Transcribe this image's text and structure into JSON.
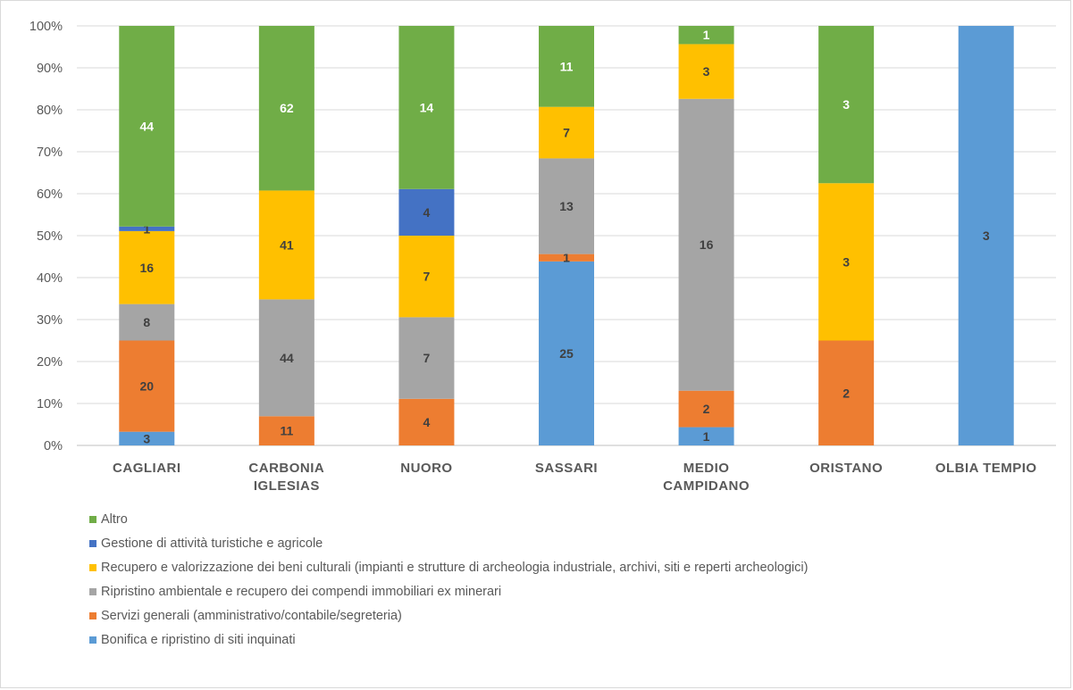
{
  "chart_data": {
    "type": "bar",
    "stacked": true,
    "normalized": true,
    "categories": [
      [
        "CAGLIARI"
      ],
      [
        "CARBONIA",
        "IGLESIAS"
      ],
      [
        "NUORO"
      ],
      [
        "SASSARI"
      ],
      [
        "MEDIO",
        "CAMPIDANO"
      ],
      [
        "ORISTANO"
      ],
      [
        "OLBIA TEMPIO"
      ]
    ],
    "series": [
      {
        "name": "Bonifica e ripristino di siti inquinati",
        "color": "#5b9bd5",
        "label_color": "#404040",
        "values": [
          3,
          0,
          0,
          25,
          1,
          0,
          3
        ]
      },
      {
        "name": "Servizi generali (amministrativo/contabile/segreteria)",
        "color": "#ed7d31",
        "label_color": "#404040",
        "values": [
          20,
          11,
          4,
          1,
          2,
          2,
          0
        ]
      },
      {
        "name": "Ripristino ambientale e recupero dei compendi immobiliari ex minerari",
        "color": "#a5a5a5",
        "label_color": "#404040",
        "values": [
          8,
          44,
          7,
          13,
          16,
          0,
          0
        ]
      },
      {
        "name": "Recupero e valorizzazione dei beni culturali (impianti e strutture di archeologia industriale, archivi, siti e reperti archeologici)",
        "color": "#ffc000",
        "label_color": "#404040",
        "values": [
          16,
          41,
          7,
          7,
          3,
          3,
          0
        ]
      },
      {
        "name": "Gestione di attività turistiche e agricole",
        "color": "#4472c4",
        "label_color": "#404040",
        "values": [
          1,
          0,
          4,
          0,
          0,
          0,
          0
        ]
      },
      {
        "name": "Altro",
        "color": "#70ad47",
        "label_color": "#ffffff",
        "values": [
          44,
          62,
          14,
          11,
          1,
          3,
          0
        ]
      }
    ],
    "ylim": [
      0,
      100
    ],
    "y_ticks": [
      "0%",
      "10%",
      "20%",
      "30%",
      "40%",
      "50%",
      "60%",
      "70%",
      "80%",
      "90%",
      "100%"
    ],
    "grid": true,
    "legend_position": "bottom",
    "legend_order": [
      "Altro",
      "Gestione di attività turistiche e agricole",
      "Recupero e valorizzazione dei beni culturali (impianti e strutture di archeologia industriale, archivi, siti e reperti archeologici)",
      "Ripristino ambientale e recupero dei compendi immobiliari ex minerari",
      "Servizi generali (amministrativo/contabile/segreteria)",
      "Bonifica e ripristino di siti inquinati"
    ],
    "title": "",
    "xlabel": "",
    "ylabel": ""
  }
}
